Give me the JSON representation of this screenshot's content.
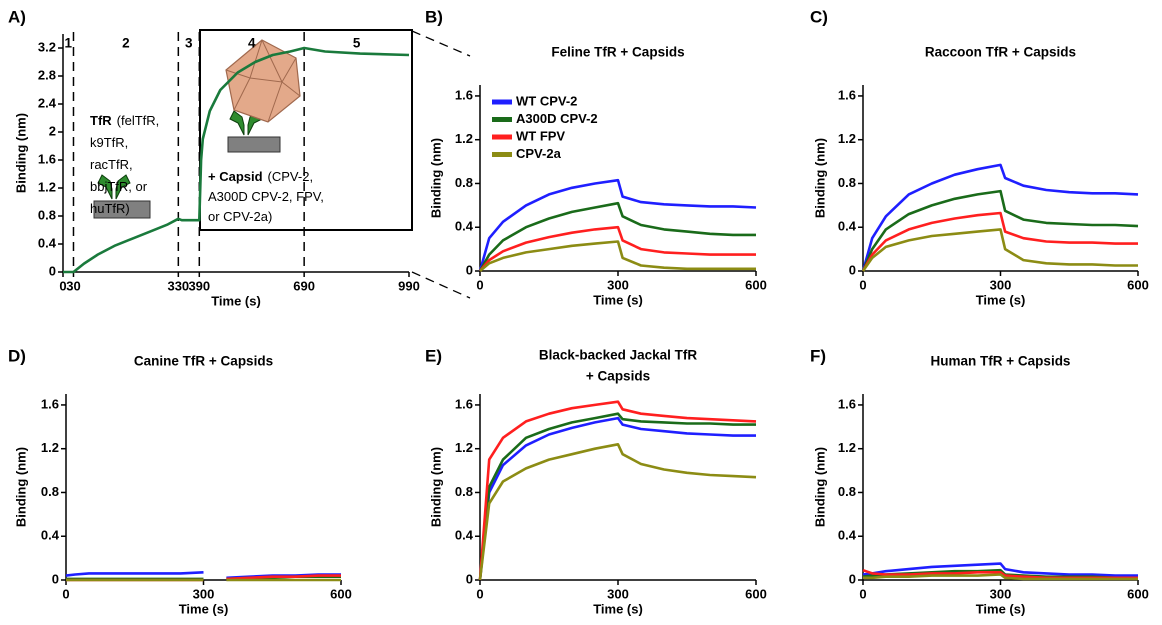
{
  "chart_data": [
    {
      "type": "line",
      "panel_label": "A)",
      "xlabel": "Time (s)",
      "ylabel": "Binding (nm)",
      "x": [
        0,
        30,
        60,
        100,
        150,
        200,
        250,
        300,
        330,
        340,
        390,
        395,
        400,
        420,
        450,
        500,
        550,
        600,
        650,
        690,
        750,
        850,
        990
      ],
      "series": [
        {
          "color": "#1a7a3c",
          "values": [
            0,
            0,
            0.12,
            0.25,
            0.38,
            0.48,
            0.58,
            0.68,
            0.76,
            0.74,
            0.74,
            1.6,
            1.9,
            2.3,
            2.6,
            2.85,
            3.0,
            3.1,
            3.15,
            3.2,
            3.15,
            3.12,
            3.1
          ]
        }
      ],
      "xlim": [
        0,
        990
      ],
      "ylim": [
        0,
        3.4
      ],
      "xticks": [
        0,
        30,
        330,
        390,
        690,
        990
      ],
      "yticks": [
        0,
        0.4,
        0.8,
        1.2,
        1.6,
        2,
        2.4,
        2.8,
        3.2
      ],
      "phase_boundaries": [
        30,
        330,
        390,
        690
      ],
      "phases": [
        "1",
        "2",
        "3",
        "4",
        "5"
      ],
      "annotations": [
        {
          "lead": "TfR",
          "lines": [
            "(felTfR,",
            "k9TfR,",
            "racTfR,",
            "bbjTfR, or",
            "huTfR)"
          ]
        },
        {
          "lead": "+ Capsid",
          "lines": [
            "(CPV-2,",
            "A300D CPV-2, FPV,",
            "or CPV-2a)"
          ]
        }
      ]
    },
    {
      "type": "line",
      "panel_label": "B)",
      "title": "Feline TfR + Capsids",
      "xlabel": "Time (s)",
      "ylabel": "Binding (nm)",
      "x": [
        0,
        20,
        50,
        100,
        150,
        200,
        250,
        300,
        310,
        350,
        400,
        450,
        500,
        550,
        600
      ],
      "series": [
        {
          "name": "WT CPV-2",
          "color": "#1f1fff",
          "values": [
            0,
            0.3,
            0.45,
            0.6,
            0.7,
            0.76,
            0.8,
            0.83,
            0.68,
            0.63,
            0.61,
            0.6,
            0.59,
            0.59,
            0.58
          ]
        },
        {
          "name": "A300D CPV-2",
          "color": "#1a6b1a",
          "values": [
            0,
            0.15,
            0.28,
            0.4,
            0.48,
            0.54,
            0.58,
            0.62,
            0.5,
            0.42,
            0.38,
            0.36,
            0.34,
            0.33,
            0.33
          ]
        },
        {
          "name": "WT FPV",
          "color": "#ff1f1f",
          "values": [
            0,
            0.1,
            0.18,
            0.26,
            0.31,
            0.35,
            0.38,
            0.4,
            0.28,
            0.2,
            0.17,
            0.16,
            0.15,
            0.15,
            0.15
          ]
        },
        {
          "name": "CPV-2a",
          "color": "#8c8c14",
          "values": [
            0,
            0.07,
            0.12,
            0.17,
            0.2,
            0.23,
            0.25,
            0.27,
            0.12,
            0.05,
            0.03,
            0.02,
            0.02,
            0.02,
            0.02
          ]
        }
      ],
      "legend": "upper left",
      "xlim": [
        0,
        600
      ],
      "ylim": [
        0,
        1.7
      ],
      "xticks": [
        0,
        300,
        600
      ],
      "yticks": [
        0,
        0.4,
        0.8,
        1.2,
        1.6
      ]
    },
    {
      "type": "line",
      "panel_label": "C)",
      "title": "Raccoon TfR + Capsids",
      "xlabel": "Time (s)",
      "ylabel": "Binding (nm)",
      "x": [
        0,
        20,
        50,
        100,
        150,
        200,
        250,
        300,
        310,
        350,
        400,
        450,
        500,
        550,
        600
      ],
      "series": [
        {
          "color": "#1f1fff",
          "values": [
            0,
            0.3,
            0.5,
            0.7,
            0.8,
            0.88,
            0.93,
            0.97,
            0.85,
            0.78,
            0.74,
            0.72,
            0.71,
            0.71,
            0.7
          ]
        },
        {
          "color": "#1a6b1a",
          "values": [
            0,
            0.2,
            0.38,
            0.52,
            0.6,
            0.66,
            0.7,
            0.73,
            0.55,
            0.47,
            0.44,
            0.43,
            0.42,
            0.42,
            0.41
          ]
        },
        {
          "color": "#ff1f1f",
          "values": [
            0,
            0.15,
            0.28,
            0.38,
            0.44,
            0.48,
            0.51,
            0.53,
            0.36,
            0.3,
            0.27,
            0.26,
            0.26,
            0.25,
            0.25
          ]
        },
        {
          "color": "#8c8c14",
          "values": [
            0,
            0.12,
            0.22,
            0.28,
            0.32,
            0.34,
            0.36,
            0.38,
            0.2,
            0.1,
            0.07,
            0.06,
            0.06,
            0.05,
            0.05
          ]
        }
      ],
      "xlim": [
        0,
        600
      ],
      "ylim": [
        0,
        1.7
      ],
      "xticks": [
        0,
        300,
        600
      ],
      "yticks": [
        0,
        0.4,
        0.8,
        1.2,
        1.6
      ]
    },
    {
      "type": "line",
      "panel_label": "D)",
      "title": "Canine TfR + Capsids",
      "xlabel": "Time (s)",
      "ylabel": "Binding (nm)",
      "x": [
        0,
        20,
        50,
        100,
        150,
        200,
        250,
        300,
        310,
        350,
        400,
        450,
        500,
        550,
        600
      ],
      "series": [
        {
          "color": "#1f1fff",
          "values": [
            0.04,
            0.05,
            0.06,
            0.06,
            0.06,
            0.06,
            0.06,
            0.07,
            null,
            0.02,
            0.03,
            0.04,
            0.04,
            0.05,
            0.05
          ]
        },
        {
          "color": "#1a6b1a",
          "values": [
            0.01,
            0.01,
            0.01,
            0.01,
            0.01,
            0.01,
            0.01,
            0.01,
            null,
            0.01,
            0.02,
            0.02,
            0.03,
            0.03,
            0.03
          ]
        },
        {
          "color": "#ff1f1f",
          "values": [
            0,
            0,
            0,
            0,
            0,
            0,
            0,
            0,
            null,
            0.01,
            0.02,
            0.03,
            0.03,
            0.04,
            0.04
          ]
        },
        {
          "color": "#8c8c14",
          "values": [
            0,
            0,
            0,
            0,
            0,
            0,
            0,
            0,
            null,
            0,
            0,
            0,
            0,
            0,
            0
          ]
        }
      ],
      "xlim": [
        0,
        600
      ],
      "ylim": [
        0,
        1.7
      ],
      "xticks": [
        0,
        300,
        600
      ],
      "yticks": [
        0,
        0.4,
        0.8,
        1.2,
        1.6
      ]
    },
    {
      "type": "line",
      "panel_label": "E)",
      "title": [
        "Black-backed Jackal TfR",
        "+ Capsids"
      ],
      "xlabel": "Time (s)",
      "ylabel": "Binding (nm)",
      "x": [
        0,
        20,
        50,
        100,
        150,
        200,
        250,
        300,
        310,
        350,
        400,
        450,
        500,
        550,
        600
      ],
      "series": [
        {
          "color": "#1f1fff",
          "values": [
            0,
            0.8,
            1.05,
            1.23,
            1.33,
            1.39,
            1.44,
            1.48,
            1.42,
            1.38,
            1.36,
            1.34,
            1.33,
            1.32,
            1.32
          ]
        },
        {
          "color": "#1a6b1a",
          "values": [
            0,
            0.85,
            1.1,
            1.3,
            1.38,
            1.44,
            1.48,
            1.52,
            1.47,
            1.45,
            1.44,
            1.43,
            1.43,
            1.42,
            1.42
          ]
        },
        {
          "color": "#ff1f1f",
          "values": [
            0,
            1.1,
            1.3,
            1.45,
            1.52,
            1.57,
            1.6,
            1.63,
            1.56,
            1.52,
            1.5,
            1.48,
            1.47,
            1.46,
            1.45
          ]
        },
        {
          "color": "#8c8c14",
          "values": [
            0,
            0.7,
            0.9,
            1.02,
            1.1,
            1.15,
            1.2,
            1.24,
            1.15,
            1.06,
            1.01,
            0.98,
            0.96,
            0.95,
            0.94
          ]
        }
      ],
      "xlim": [
        0,
        600
      ],
      "ylim": [
        0,
        1.7
      ],
      "xticks": [
        0,
        300,
        600
      ],
      "yticks": [
        0,
        0.4,
        0.8,
        1.2,
        1.6
      ]
    },
    {
      "type": "line",
      "panel_label": "F)",
      "title": "Human TfR + Capsids",
      "xlabel": "Time (s)",
      "ylabel": "Binding (nm)",
      "x": [
        0,
        20,
        50,
        100,
        150,
        200,
        250,
        300,
        310,
        350,
        400,
        450,
        500,
        550,
        600
      ],
      "series": [
        {
          "color": "#1f1fff",
          "values": [
            0.05,
            0.06,
            0.08,
            0.1,
            0.12,
            0.13,
            0.14,
            0.15,
            0.1,
            0.07,
            0.06,
            0.05,
            0.05,
            0.04,
            0.04
          ]
        },
        {
          "color": "#1a6b1a",
          "values": [
            0.03,
            0.04,
            0.05,
            0.06,
            0.07,
            0.08,
            0.08,
            0.09,
            0.05,
            0.04,
            0.03,
            0.03,
            0.03,
            0.02,
            0.02
          ]
        },
        {
          "color": "#ff1f1f",
          "values": [
            0.09,
            0.06,
            0.05,
            0.05,
            0.06,
            0.06,
            0.07,
            0.07,
            0.04,
            0.03,
            0.02,
            0.02,
            0.02,
            0.02,
            0.02
          ]
        },
        {
          "color": "#8c8c14",
          "values": [
            0.02,
            0.02,
            0.03,
            0.03,
            0.04,
            0.04,
            0.04,
            0.05,
            0.02,
            0.01,
            0.01,
            0.01,
            0.01,
            0.01,
            0.01
          ]
        }
      ],
      "xlim": [
        0,
        600
      ],
      "ylim": [
        0,
        1.7
      ],
      "xticks": [
        0,
        300,
        600
      ],
      "yticks": [
        0,
        0.4,
        0.8,
        1.2,
        1.6
      ]
    }
  ]
}
